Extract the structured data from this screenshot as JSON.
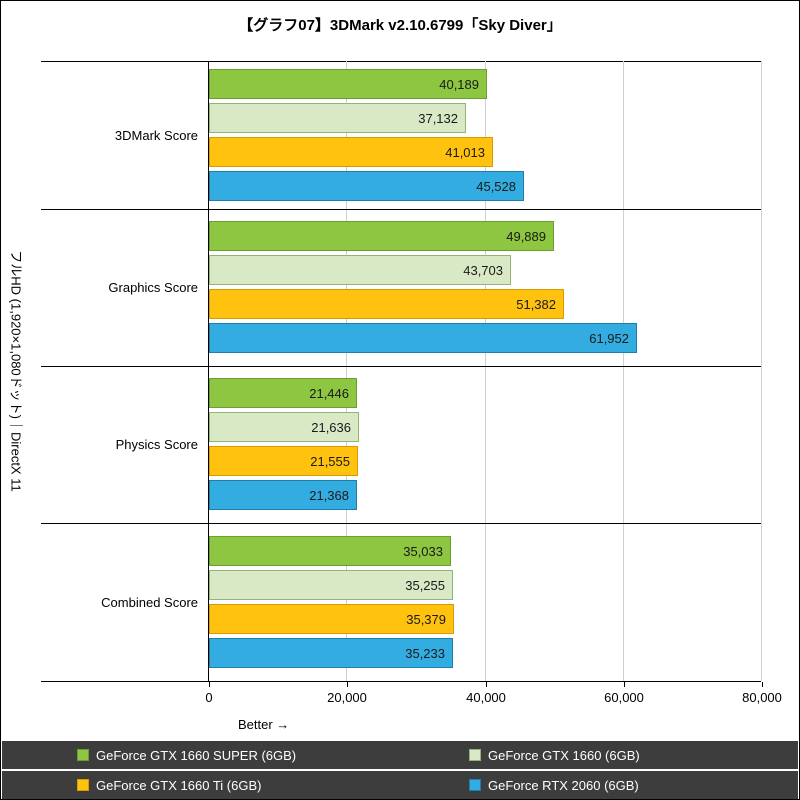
{
  "title": "【グラフ07】3DMark v2.10.6799「Sky Diver」",
  "y_axis_label": "フルHD (1,920×1,080ドット)｜DirectX 11",
  "x_axis": {
    "tick_values": [
      0,
      20000,
      40000,
      60000,
      80000
    ],
    "tick_labels": [
      "0",
      "20,000",
      "40,000",
      "60,000",
      "80,000"
    ],
    "better_label": "Better →"
  },
  "chart_data": {
    "type": "bar",
    "orientation": "horizontal",
    "title": "【グラフ07】3DMark v2.10.6799「Sky Diver」",
    "categories": [
      "3DMark Score",
      "Graphics Score",
      "Physics Score",
      "Combined Score"
    ],
    "series": [
      {
        "name": "GeForce GTX 1660 SUPER (6GB)",
        "color": "#8DC640",
        "border_color": "#6B9E2E",
        "values": [
          40189,
          49889,
          21446,
          35033
        ],
        "value_labels": [
          "40,189",
          "49,889",
          "21,446",
          "35,033"
        ]
      },
      {
        "name": "GeForce GTX 1660 (6GB)",
        "color": "#D9E9C6",
        "border_color": "#94B377",
        "values": [
          37132,
          43703,
          21636,
          35255
        ],
        "value_labels": [
          "37,132",
          "43,703",
          "21,636",
          "35,255"
        ]
      },
      {
        "name": "GeForce GTX 1660 Ti (6GB)",
        "color": "#FFC20E",
        "border_color": "#D79B00",
        "values": [
          41013,
          51382,
          21555,
          35379
        ],
        "value_labels": [
          "41,013",
          "51,382",
          "21,555",
          "35,379"
        ]
      },
      {
        "name": "GeForce RTX 2060 (6GB)",
        "color": "#33ADE1",
        "border_color": "#1F7FA8",
        "values": [
          45528,
          61952,
          21368,
          35233
        ],
        "value_labels": [
          "45,528",
          "61,952",
          "21,368",
          "35,233"
        ]
      }
    ],
    "xlim": [
      0,
      80000
    ],
    "xlabel": "Better →",
    "ylabel": "フルHD (1,920×1,080ドット)｜DirectX 11",
    "grid": true,
    "legend_position": "bottom"
  }
}
